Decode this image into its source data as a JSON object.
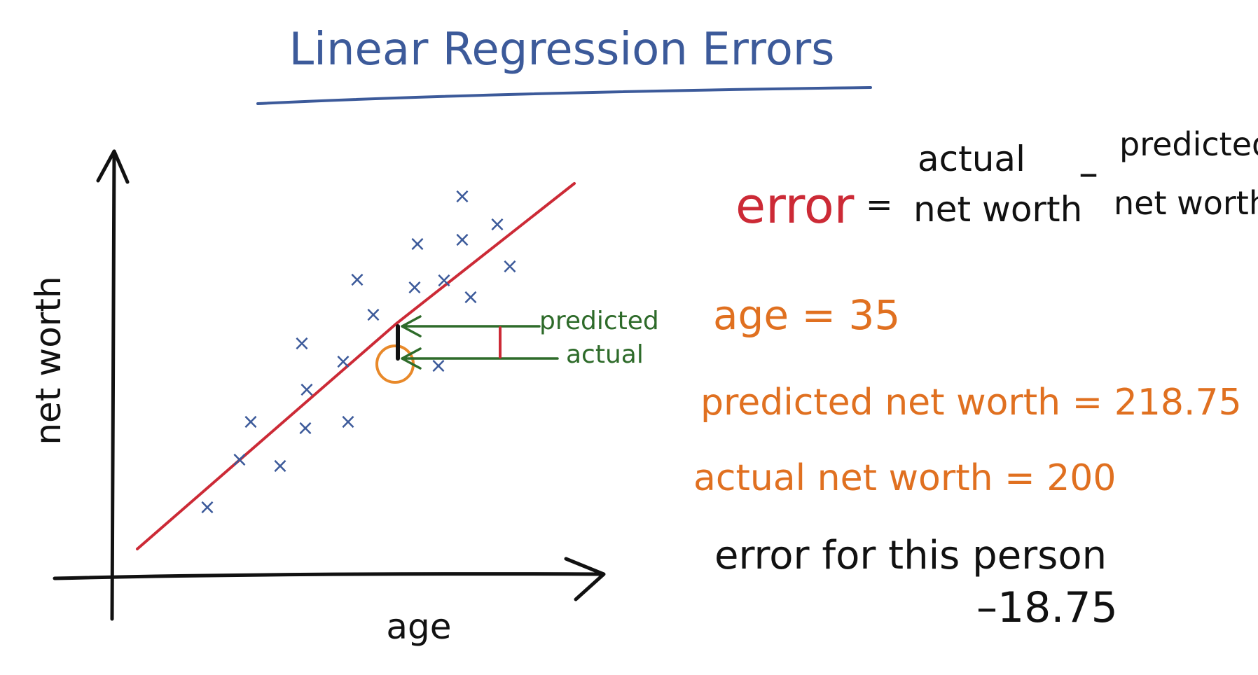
{
  "title": "Linear Regression Errors",
  "axes": {
    "x_label": "age",
    "y_label": "net worth"
  },
  "annotations": {
    "predicted": "predicted",
    "actual": "actual"
  },
  "formula": {
    "lhs": "error",
    "equals": "=",
    "term1_top": "actual",
    "term1_bottom": "net worth",
    "minus": "–",
    "term2_top": "predicted",
    "term2_bottom": "net worth"
  },
  "example": {
    "age_line": "age = 35",
    "predicted_line": "predicted net worth = 218.75",
    "actual_line": "actual net worth = 200",
    "error_label": "error for this person",
    "error_value": "–18.75"
  },
  "colors": {
    "title": "#3c5a9a",
    "fit_line": "#cc2a36",
    "points": "#3c5a9a",
    "arrows": "#2e6b2a",
    "highlight": "#e8892a",
    "example_text": "#e07020",
    "ink": "#111111"
  }
}
